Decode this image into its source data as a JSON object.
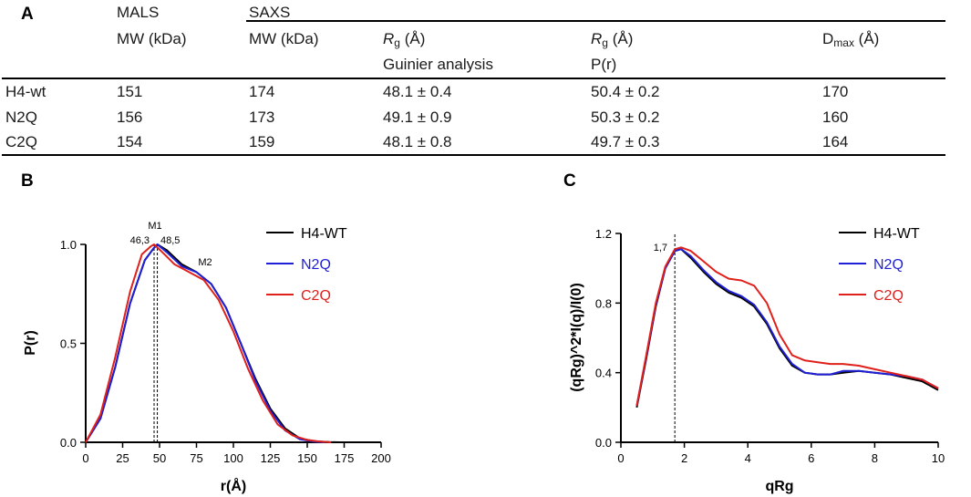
{
  "panels": {
    "a": "A",
    "b": "B",
    "c": "C"
  },
  "table": {
    "group_malss": "MALS",
    "group_saxs": "SAXS",
    "headers": {
      "mals_mw": "MW (kDa)",
      "saxs_mw": "MW (kDa)",
      "rg_guinier_sym": "R",
      "rg_guinier_sub": "g",
      "rg_guinier_unit": " (Å)",
      "rg_guinier_note": "Guinier analysis",
      "rg_pr_sym": "R",
      "rg_pr_sub": "g",
      "rg_pr_unit": " (Å)",
      "rg_pr_note": "P(r)",
      "dmax_sym": "D",
      "dmax_sub": "max",
      "dmax_unit": " (Å)"
    },
    "rows": [
      {
        "name": "H4-wt",
        "mals_mw": "151",
        "saxs_mw": "174",
        "rg_guinier": "48.1 ± 0.4",
        "rg_pr": "50.4 ± 0.2",
        "dmax": "170"
      },
      {
        "name": "N2Q",
        "mals_mw": "156",
        "saxs_mw": "173",
        "rg_guinier": "49.1 ± 0.9",
        "rg_pr": "50.3 ± 0.2",
        "dmax": "160"
      },
      {
        "name": "C2Q",
        "mals_mw": "154",
        "saxs_mw": "159",
        "rg_guinier": "48.1 ± 0.8",
        "rg_pr": "49.7 ± 0.3",
        "dmax": "164"
      }
    ]
  },
  "chart_data": [
    {
      "type": "line",
      "panel": "B",
      "xlabel": "r(Å)",
      "ylabel": "P(r)",
      "xlim": [
        0,
        200
      ],
      "ylim": [
        0,
        1.0
      ],
      "xticks": [
        "0",
        "25",
        "50",
        "75",
        "100",
        "125",
        "150",
        "175",
        "200"
      ],
      "yticks": [
        "0.0",
        "0.5",
        "1.0"
      ],
      "legend_position": "top-right",
      "annotations": {
        "m1": "M1",
        "m2": "M2",
        "left_peak": "46,3",
        "right_peak": "48,5"
      },
      "vlines": [
        46.3,
        48.5
      ],
      "series": [
        {
          "name": "H4-WT",
          "color": "#000000",
          "x": [
            0,
            10,
            20,
            30,
            40,
            46,
            48.5,
            55,
            65,
            75,
            85,
            95,
            105,
            115,
            125,
            135,
            145,
            155,
            165,
            172
          ],
          "y": [
            0,
            0.12,
            0.38,
            0.7,
            0.92,
            0.98,
            1.0,
            0.97,
            0.9,
            0.86,
            0.8,
            0.68,
            0.5,
            0.32,
            0.17,
            0.07,
            0.02,
            0.005,
            0.001,
            0
          ]
        },
        {
          "name": "N2Q",
          "color": "#1f1fd6",
          "x": [
            0,
            10,
            20,
            30,
            40,
            46,
            48.5,
            55,
            65,
            75,
            85,
            95,
            105,
            115,
            125,
            135,
            145,
            155,
            162
          ],
          "y": [
            0,
            0.12,
            0.38,
            0.7,
            0.92,
            0.98,
            1.0,
            0.96,
            0.89,
            0.86,
            0.8,
            0.68,
            0.5,
            0.31,
            0.16,
            0.06,
            0.015,
            0.003,
            0
          ]
        },
        {
          "name": "C2Q",
          "color": "#e0201b",
          "x": [
            0,
            10,
            20,
            30,
            38,
            44,
            46.3,
            52,
            60,
            70,
            80,
            90,
            100,
            110,
            120,
            130,
            140,
            150,
            158,
            166
          ],
          "y": [
            0,
            0.14,
            0.43,
            0.76,
            0.95,
            0.99,
            1.0,
            0.96,
            0.9,
            0.86,
            0.82,
            0.72,
            0.56,
            0.37,
            0.21,
            0.09,
            0.035,
            0.012,
            0.004,
            0
          ]
        }
      ]
    },
    {
      "type": "line",
      "panel": "C",
      "xlabel": "qRg",
      "ylabel": "(qRg)^2*I(q)/I(0)",
      "xlim": [
        0,
        10
      ],
      "ylim": [
        0,
        1.2
      ],
      "xticks": [
        "0",
        "2",
        "4",
        "6",
        "8",
        "10"
      ],
      "yticks": [
        "0.0",
        "0.4",
        "0.8",
        "1.2"
      ],
      "legend_position": "top-right",
      "annotations": {
        "peak": "1,7"
      },
      "vlines": [
        1.7
      ],
      "series": [
        {
          "name": "H4-WT",
          "color": "#000000",
          "x": [
            0.5,
            0.8,
            1.1,
            1.4,
            1.7,
            1.9,
            2.2,
            2.6,
            3.0,
            3.4,
            3.8,
            4.2,
            4.6,
            5.0,
            5.4,
            5.8,
            6.2,
            6.6,
            7.0,
            7.5,
            8.0,
            8.5,
            9.0,
            9.5,
            10.0
          ],
          "y": [
            0.2,
            0.48,
            0.78,
            1.0,
            1.1,
            1.11,
            1.06,
            0.98,
            0.91,
            0.86,
            0.83,
            0.78,
            0.68,
            0.54,
            0.44,
            0.4,
            0.39,
            0.39,
            0.4,
            0.41,
            0.4,
            0.39,
            0.37,
            0.35,
            0.3
          ]
        },
        {
          "name": "N2Q",
          "color": "#1f1fd6",
          "x": [
            0.5,
            0.8,
            1.1,
            1.4,
            1.7,
            1.9,
            2.2,
            2.6,
            3.0,
            3.4,
            3.8,
            4.2,
            4.6,
            5.0,
            5.4,
            5.8,
            6.2,
            6.6,
            7.0,
            7.5,
            8.0,
            8.5,
            9.0,
            9.5,
            10.0
          ],
          "y": [
            0.21,
            0.49,
            0.79,
            1.0,
            1.1,
            1.11,
            1.07,
            0.99,
            0.92,
            0.87,
            0.84,
            0.79,
            0.69,
            0.55,
            0.45,
            0.4,
            0.39,
            0.39,
            0.41,
            0.41,
            0.4,
            0.39,
            0.38,
            0.36,
            0.31
          ]
        },
        {
          "name": "C2Q",
          "color": "#e0201b",
          "x": [
            0.5,
            0.8,
            1.1,
            1.4,
            1.7,
            1.9,
            2.2,
            2.6,
            3.0,
            3.4,
            3.8,
            4.2,
            4.6,
            5.0,
            5.4,
            5.8,
            6.2,
            6.6,
            7.0,
            7.5,
            8.0,
            8.5,
            9.0,
            9.5,
            10.0
          ],
          "y": [
            0.21,
            0.5,
            0.8,
            1.01,
            1.11,
            1.12,
            1.1,
            1.04,
            0.98,
            0.94,
            0.93,
            0.9,
            0.8,
            0.62,
            0.5,
            0.47,
            0.46,
            0.45,
            0.45,
            0.44,
            0.42,
            0.4,
            0.38,
            0.36,
            0.31
          ]
        }
      ]
    }
  ]
}
